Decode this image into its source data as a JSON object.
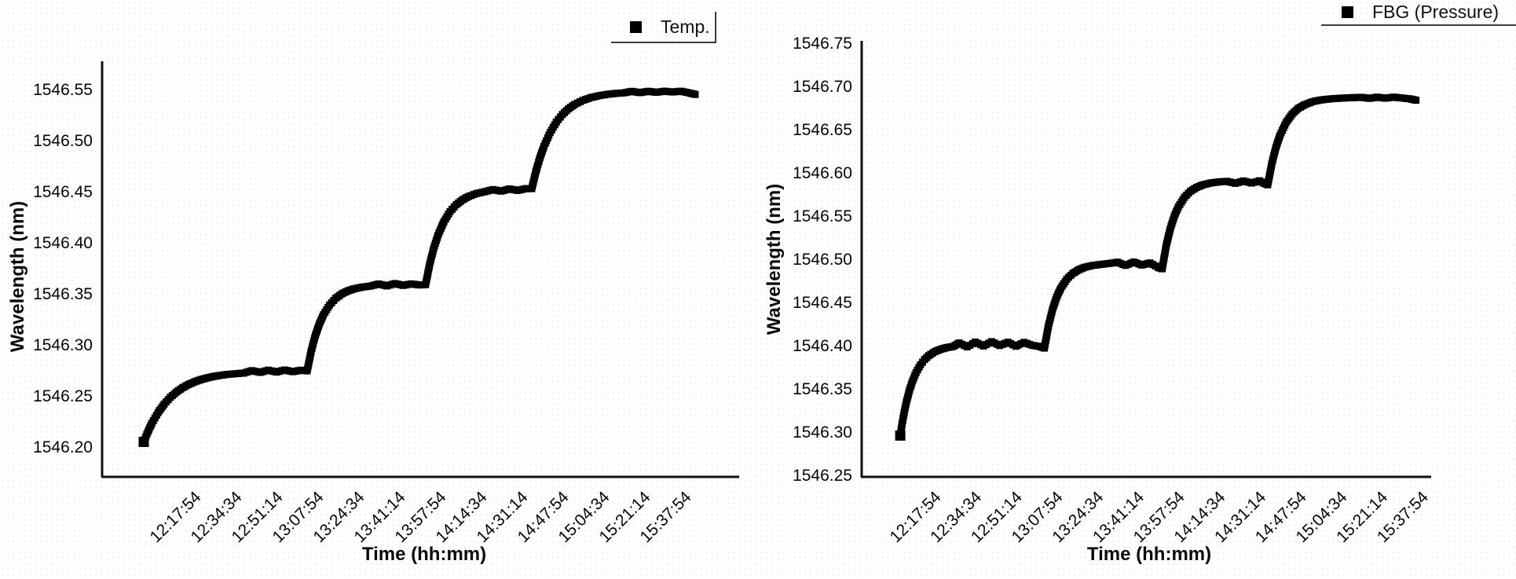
{
  "figure": {
    "background": "#ffffff",
    "series_color": "#000000",
    "axis_color": "#101010"
  },
  "chart_data": [
    {
      "type": "scatter",
      "title": "",
      "xlabel": "Time (hh:mm)",
      "ylabel": "Wavelength (nm)",
      "legend_position": "top-right",
      "grid": false,
      "x_tick_labels": [
        "12:17:54",
        "12:34:34",
        "12:51:14",
        "13:07:54",
        "13:24:34",
        "13:41:14",
        "13:57:54",
        "14:14:34",
        "14:31:14",
        "14:47:54",
        "15:04:34",
        "15:21:14",
        "15:37:54"
      ],
      "x_tick_seconds": [
        0,
        1000,
        2000,
        3000,
        4000,
        5000,
        6000,
        7000,
        8000,
        9000,
        10000,
        11000,
        12000
      ],
      "y_tick_values": [
        1546.2,
        1546.25,
        1546.3,
        1546.35,
        1546.4,
        1546.45,
        1546.5,
        1546.55
      ],
      "ylim": [
        1546.17,
        1546.58
      ],
      "xlim_seconds": [
        -2270,
        13310
      ],
      "series": [
        {
          "name": "Temp.",
          "marker": "square",
          "color": "#000000",
          "points": [
            [
              -1250,
              1546.205
            ],
            [
              -1150,
              1546.2148
            ],
            [
              -1050,
              1546.2233
            ],
            [
              -900,
              1546.2337
            ],
            [
              -750,
              1546.242
            ],
            [
              -600,
              1546.2486
            ],
            [
              -450,
              1546.2538
            ],
            [
              -300,
              1546.258
            ],
            [
              -150,
              1546.2613
            ],
            [
              0,
              1546.2639
            ],
            [
              150,
              1546.266
            ],
            [
              300,
              1546.2676
            ],
            [
              450,
              1546.269
            ],
            [
              600,
              1546.27
            ],
            [
              800,
              1546.2711
            ],
            [
              1000,
              1546.2718
            ],
            [
              1200,
              1546.2724
            ],
            [
              1400,
              1546.2748
            ],
            [
              1600,
              1546.2731
            ],
            [
              1800,
              1546.2752
            ],
            [
              2000,
              1546.2734
            ],
            [
              2200,
              1546.2754
            ],
            [
              2400,
              1546.2738
            ],
            [
              2600,
              1546.2752
            ],
            [
              2750,
              1546.2745
            ],
            [
              2850,
              1546.294
            ],
            [
              2950,
              1546.3091
            ],
            [
              3050,
              1546.3206
            ],
            [
              3150,
              1546.3295
            ],
            [
              3300,
              1546.3391
            ],
            [
              3450,
              1546.3456
            ],
            [
              3600,
              1546.35
            ],
            [
              3750,
              1546.3529
            ],
            [
              3900,
              1546.3549
            ],
            [
              4100,
              1546.3566
            ],
            [
              4300,
              1546.3576
            ],
            [
              4500,
              1546.3597
            ],
            [
              4700,
              1546.3577
            ],
            [
              4900,
              1546.3601
            ],
            [
              5100,
              1546.3582
            ],
            [
              5300,
              1546.3597
            ],
            [
              5500,
              1546.3587
            ],
            [
              5650,
              1546.359
            ],
            [
              5750,
              1546.3789
            ],
            [
              5850,
              1546.3946
            ],
            [
              5950,
              1546.407
            ],
            [
              6100,
              1546.4208
            ],
            [
              6250,
              1546.4305
            ],
            [
              6400,
              1546.4372
            ],
            [
              6550,
              1546.442
            ],
            [
              6700,
              1546.4453
            ],
            [
              6900,
              1546.4482
            ],
            [
              7100,
              1546.45
            ],
            [
              7300,
              1546.4521
            ],
            [
              7500,
              1546.4505
            ],
            [
              7700,
              1546.4528
            ],
            [
              7900,
              1546.4512
            ],
            [
              8100,
              1546.453
            ],
            [
              8250,
              1546.453
            ],
            [
              8350,
              1546.4696
            ],
            [
              8450,
              1546.4833
            ],
            [
              8550,
              1546.4946
            ],
            [
              8700,
              1546.508
            ],
            [
              8850,
              1546.5181
            ],
            [
              9000,
              1546.5256
            ],
            [
              9150,
              1546.5312
            ],
            [
              9300,
              1546.5354
            ],
            [
              9500,
              1546.5394
            ],
            [
              9700,
              1546.5422
            ],
            [
              9900,
              1546.544
            ],
            [
              10100,
              1546.5453
            ],
            [
              10300,
              1546.5462
            ],
            [
              10500,
              1546.5468
            ],
            [
              10700,
              1546.5482
            ],
            [
              10900,
              1546.547
            ],
            [
              11100,
              1546.5483
            ],
            [
              11300,
              1546.5473
            ],
            [
              11500,
              1546.5484
            ],
            [
              11700,
              1546.5476
            ],
            [
              11900,
              1546.5484
            ],
            [
              12100,
              1546.5468
            ],
            [
              12250,
              1546.5452
            ]
          ]
        }
      ]
    },
    {
      "type": "scatter",
      "title": "",
      "xlabel": "Time (hh:mm)",
      "ylabel": "Wavelength (nm)",
      "legend_position": "top-right",
      "grid": false,
      "x_tick_labels": [
        "12:17:54",
        "12:34:34",
        "12:51:14",
        "13:07:54",
        "13:24:34",
        "13:41:14",
        "13:57:54",
        "14:14:34",
        "14:31:14",
        "14:47:54",
        "15:04:34",
        "15:21:14",
        "15:37:54"
      ],
      "x_tick_seconds": [
        0,
        1000,
        2000,
        3000,
        4000,
        5000,
        6000,
        7000,
        8000,
        9000,
        10000,
        11000,
        12000
      ],
      "y_tick_values": [
        1546.25,
        1546.3,
        1546.35,
        1546.4,
        1546.45,
        1546.5,
        1546.55,
        1546.6,
        1546.65,
        1546.7,
        1546.75
      ],
      "ylim": [
        1546.25,
        1546.75
      ],
      "xlim_seconds": [
        -2000,
        13200
      ],
      "series": [
        {
          "name": "FBG (Pressure)",
          "marker": "square",
          "color": "#000000",
          "points": [
            [
              -850,
              1546.296
            ],
            [
              -780,
              1546.3161
            ],
            [
              -700,
              1546.3344
            ],
            [
              -620,
              1546.3487
            ],
            [
              -540,
              1546.36
            ],
            [
              -460,
              1546.3688
            ],
            [
              -350,
              1546.3779
            ],
            [
              -250,
              1546.384
            ],
            [
              -150,
              1546.3884
            ],
            [
              0,
              1546.393
            ],
            [
              150,
              1546.3959
            ],
            [
              300,
              1546.3978
            ],
            [
              450,
              1546.399
            ],
            [
              600,
              1546.4032
            ],
            [
              800,
              1546.3986
            ],
            [
              1000,
              1546.4042
            ],
            [
              1200,
              1546.3996
            ],
            [
              1400,
              1546.4046
            ],
            [
              1600,
              1546.4002
            ],
            [
              1800,
              1546.404
            ],
            [
              2000,
              1546.3994
            ],
            [
              2200,
              1546.4038
            ],
            [
              2400,
              1546.4004
            ],
            [
              2600,
              1546.3988
            ],
            [
              2700,
              1546.3972
            ],
            [
              2800,
              1546.4229
            ],
            [
              2900,
              1546.4419
            ],
            [
              3000,
              1546.4559
            ],
            [
              3100,
              1546.4662
            ],
            [
              3250,
              1546.4769
            ],
            [
              3400,
              1546.4837
            ],
            [
              3550,
              1546.488
            ],
            [
              3700,
              1546.4908
            ],
            [
              3900,
              1546.4929
            ],
            [
              4100,
              1546.4941
            ],
            [
              4300,
              1546.4952
            ],
            [
              4500,
              1546.4966
            ],
            [
              4700,
              1546.4929
            ],
            [
              4900,
              1546.4968
            ],
            [
              5100,
              1546.4933
            ],
            [
              5300,
              1546.4957
            ],
            [
              5500,
              1546.4905
            ],
            [
              5600,
              1546.489
            ],
            [
              5700,
              1546.5157
            ],
            [
              5800,
              1546.5354
            ],
            [
              5900,
              1546.5499
            ],
            [
              6000,
              1546.5606
            ],
            [
              6150,
              1546.5717
            ],
            [
              6300,
              1546.5788
            ],
            [
              6450,
              1546.5832
            ],
            [
              6600,
              1546.5861
            ],
            [
              6800,
              1546.5883
            ],
            [
              7000,
              1546.5895
            ],
            [
              7200,
              1546.5902
            ],
            [
              7400,
              1546.5878
            ],
            [
              7600,
              1546.5906
            ],
            [
              7800,
              1546.5882
            ],
            [
              8000,
              1546.5908
            ],
            [
              8100,
              1546.588
            ],
            [
              8200,
              1546.5862
            ],
            [
              8300,
              1546.6106
            ],
            [
              8400,
              1546.6292
            ],
            [
              8500,
              1546.6432
            ],
            [
              8650,
              1546.6581
            ],
            [
              8800,
              1546.668
            ],
            [
              8950,
              1546.6745
            ],
            [
              9100,
              1546.6787
            ],
            [
              9300,
              1546.6823
            ],
            [
              9500,
              1546.6843
            ],
            [
              9700,
              1546.6854
            ],
            [
              9900,
              1546.6861
            ],
            [
              10100,
              1546.6866
            ],
            [
              10300,
              1546.687
            ],
            [
              10500,
              1546.6874
            ],
            [
              10700,
              1546.6862
            ],
            [
              10900,
              1546.6875
            ],
            [
              11100,
              1546.6864
            ],
            [
              11300,
              1546.6876
            ],
            [
              11500,
              1546.6866
            ],
            [
              11700,
              1546.6856
            ],
            [
              11850,
              1546.684
            ]
          ]
        }
      ]
    }
  ]
}
